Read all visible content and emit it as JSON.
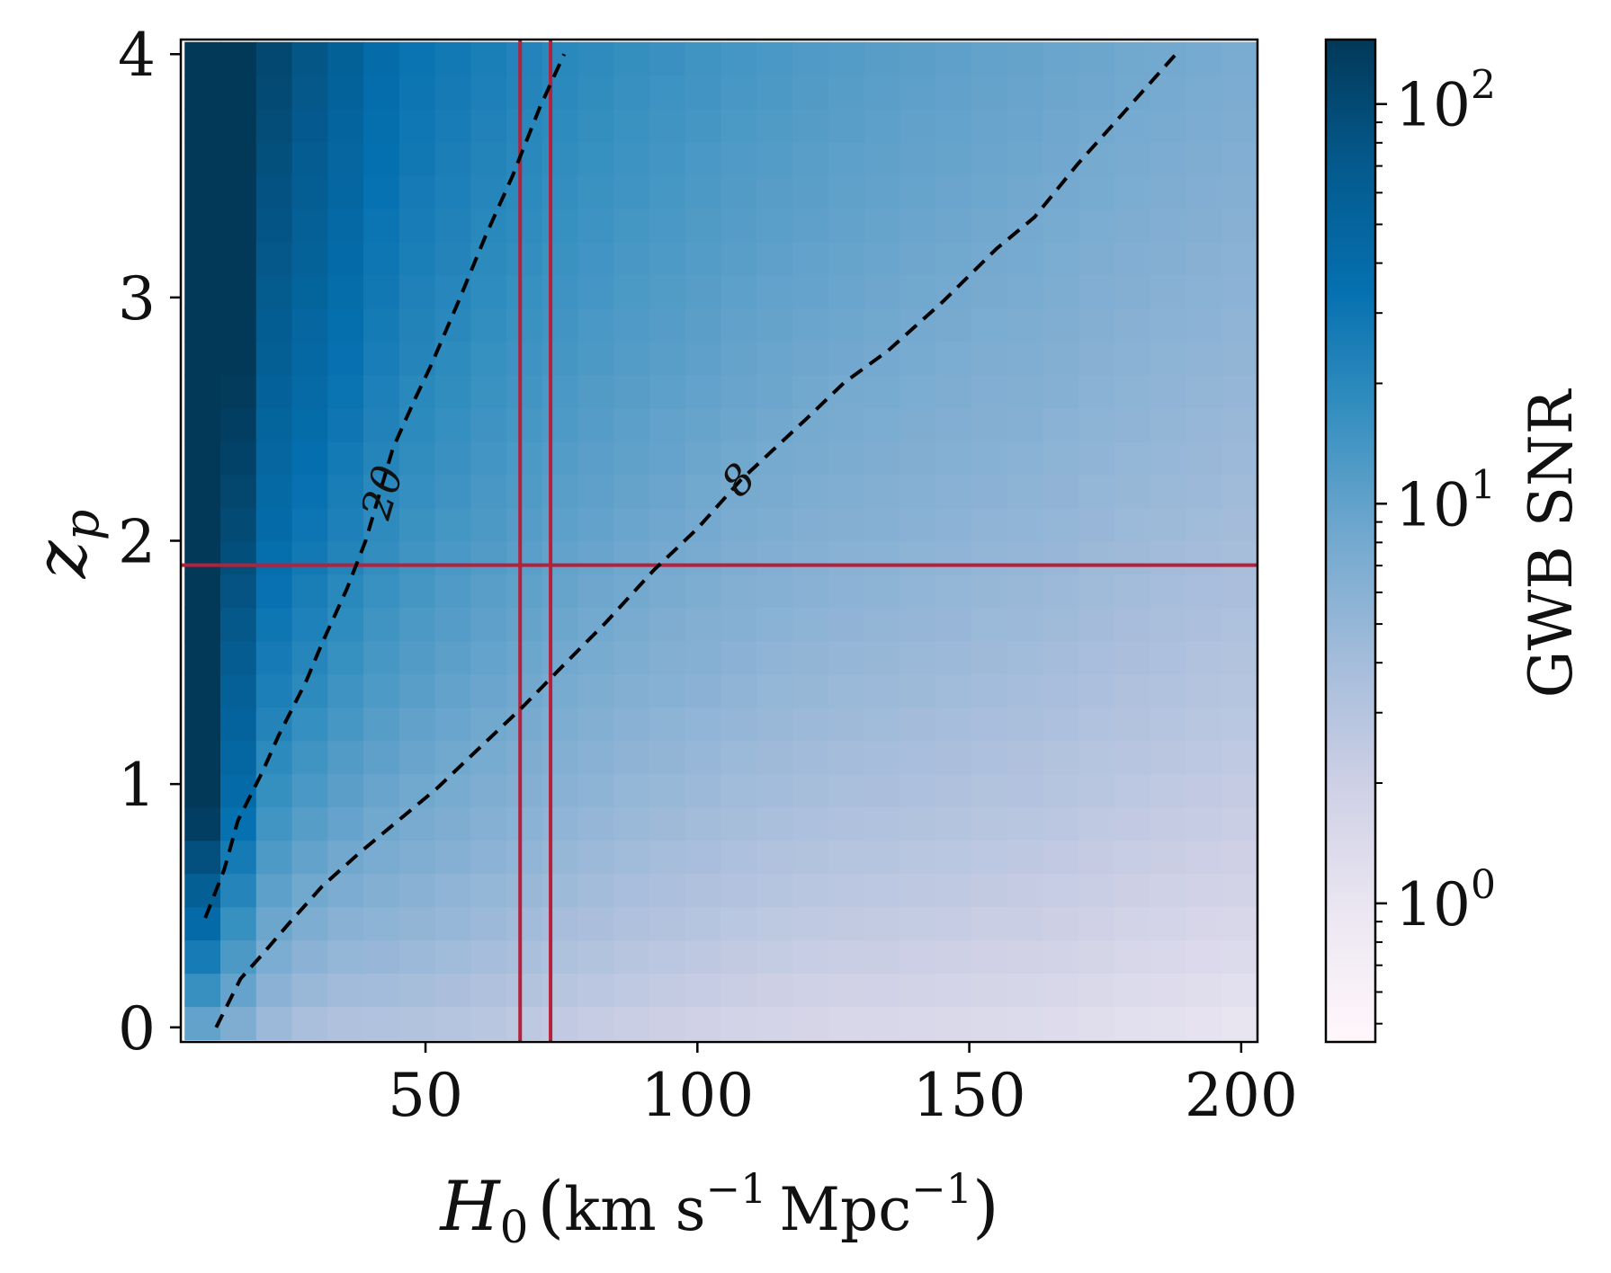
{
  "chart_data": {
    "type": "heatmap",
    "title": "",
    "xlabel": {
      "main": "H",
      "sub": "0",
      "units": "km s",
      "units_sup": "−1",
      "units2": "Mpc",
      "units2_sup": "−1",
      "open": "(",
      "close": ")"
    },
    "ylabel": {
      "main": "z",
      "sub": "p"
    },
    "xlim": [
      5,
      203
    ],
    "ylim": [
      -0.06,
      4.06
    ],
    "x_ticks": [
      {
        "value": 50,
        "label": "50"
      },
      {
        "value": 100,
        "label": "100"
      },
      {
        "value": 150,
        "label": "150"
      },
      {
        "value": 200,
        "label": "200"
      }
    ],
    "y_ticks": [
      {
        "value": 0,
        "label": "0"
      },
      {
        "value": 1,
        "label": "1"
      },
      {
        "value": 2,
        "label": "2"
      },
      {
        "value": 3,
        "label": "3"
      },
      {
        "value": 4,
        "label": "4"
      }
    ],
    "grid": false,
    "heatmap": {
      "x_range": [
        5.7,
        203
      ],
      "y_range": [
        -0.05,
        4.05
      ],
      "x_cells": 30,
      "y_cells": 30,
      "scale": "log"
    },
    "colorbar": {
      "label": "GWB SNR",
      "scale": "log",
      "range": [
        0.45,
        145
      ],
      "ticks": [
        {
          "value": 1,
          "base": "10",
          "exp": "0"
        },
        {
          "value": 10,
          "base": "10",
          "exp": "1"
        },
        {
          "value": 100,
          "base": "10",
          "exp": "2"
        }
      ],
      "colors": [
        "#fff7fb",
        "#ece7f2",
        "#d0d1e6",
        "#a6bddb",
        "#74a9cf",
        "#3690c0",
        "#0570b0",
        "#045a8d",
        "#023858"
      ]
    },
    "contours": [
      {
        "level": "20",
        "style": "dashed",
        "color": "#000000",
        "label_at": {
          "x": 42,
          "y": 2.2
        },
        "points": [
          [
            9.5,
            0.45
          ],
          [
            13,
            0.65
          ],
          [
            15.5,
            0.85
          ],
          [
            20,
            1.05
          ],
          [
            23,
            1.2
          ],
          [
            28,
            1.42
          ],
          [
            31,
            1.58
          ],
          [
            35.5,
            1.8
          ],
          [
            39,
            2.0
          ],
          [
            44,
            2.38
          ],
          [
            48,
            2.58
          ],
          [
            51,
            2.72
          ],
          [
            56,
            2.98
          ],
          [
            61,
            3.25
          ],
          [
            66,
            3.5
          ],
          [
            71,
            3.78
          ],
          [
            75.5,
            4.0
          ]
        ]
      },
      {
        "level": "8",
        "style": "dashed",
        "color": "#000000",
        "label_at": {
          "x": 107.5,
          "y": 2.25
        },
        "points": [
          [
            11.5,
            0.0
          ],
          [
            16,
            0.2
          ],
          [
            20,
            0.3
          ],
          [
            25,
            0.43
          ],
          [
            31,
            0.58
          ],
          [
            38,
            0.72
          ],
          [
            45,
            0.85
          ],
          [
            52,
            0.98
          ],
          [
            60,
            1.15
          ],
          [
            68,
            1.32
          ],
          [
            75,
            1.48
          ],
          [
            83,
            1.66
          ],
          [
            92,
            1.88
          ],
          [
            100,
            2.05
          ],
          [
            108,
            2.25
          ],
          [
            120,
            2.5
          ],
          [
            127,
            2.65
          ],
          [
            135,
            2.78
          ],
          [
            145,
            2.98
          ],
          [
            155,
            3.2
          ],
          [
            162,
            3.33
          ],
          [
            170,
            3.55
          ],
          [
            180,
            3.8
          ],
          [
            188,
            4.0
          ]
        ]
      }
    ],
    "reference_lines": [
      {
        "orientation": "vertical",
        "value": 67.4,
        "color": "#b5203a"
      },
      {
        "orientation": "vertical",
        "value": 73.0,
        "color": "#b5203a"
      },
      {
        "orientation": "horizontal",
        "value": 1.9,
        "color": "#b5203a"
      }
    ]
  }
}
